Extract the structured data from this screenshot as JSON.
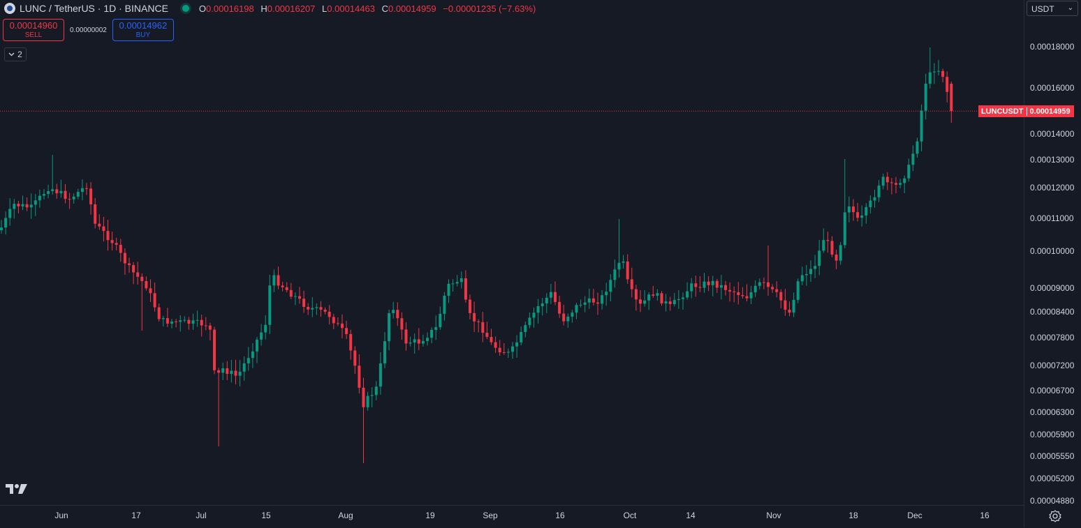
{
  "legend": {
    "symbol": "LUNC / TetherUS · 1D · BINANCE",
    "o_label": "O",
    "o": "0.00016198",
    "h_label": "H",
    "h": "0.00016207",
    "l_label": "L",
    "l": "0.00014463",
    "c_label": "C",
    "c": "0.00014959",
    "change": "−0.00001235 (−7.63%)"
  },
  "trade": {
    "sell_price": "0.00014960",
    "sell_label": "SELL",
    "spread": "0.00000002",
    "buy_price": "0.00014962",
    "buy_label": "BUY"
  },
  "indicators_toggle": {
    "count": "2"
  },
  "currency": {
    "selected": "USDT"
  },
  "price_tag": {
    "symbol": "LUNCUSDT",
    "value": "0.00014959"
  },
  "colors": {
    "up": "#089981",
    "down": "#f23645",
    "background": "#161a25",
    "sell": "#f23645",
    "buy": "#2962ff"
  },
  "icons": {
    "logo": "tradingview-logo-icon",
    "settings": "settings-gear-icon",
    "collapse": "chevron-down-icon"
  },
  "chart_data": {
    "type": "candlestick",
    "y_scale": "log",
    "y_ticks": [
      "0.00018000",
      "0.00016000",
      "0.00014000",
      "0.00013000",
      "0.00012000",
      "0.00011000",
      "0.00010000",
      "0.00009000",
      "0.00008400",
      "0.00007800",
      "0.00007200",
      "0.00006700",
      "0.00006300",
      "0.00005900",
      "0.00005550",
      "0.00005200",
      "0.00004880"
    ],
    "x_ticks": [
      "Jun",
      "17",
      "Jul",
      "15",
      "Aug",
      "19",
      "Sep",
      "16",
      "Oct",
      "14",
      "Nov",
      "18",
      "Dec",
      "16"
    ],
    "last_price": 0.00014959,
    "candles": []
  }
}
